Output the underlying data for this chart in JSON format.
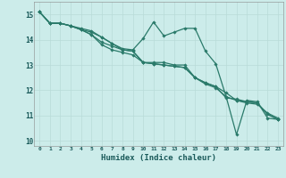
{
  "xlabel": "Humidex (Indice chaleur)",
  "xlim": [
    -0.5,
    23.5
  ],
  "ylim": [
    9.8,
    15.5
  ],
  "background_color": "#ccecea",
  "grid_color": "#b8dbd8",
  "line_color": "#2a7a6a",
  "series": [
    [
      15.1,
      14.65,
      14.65,
      14.55,
      14.4,
      14.2,
      13.9,
      13.75,
      13.6,
      13.55,
      13.1,
      13.1,
      13.1,
      13.0,
      13.0,
      12.5,
      12.3,
      12.15,
      11.9,
      11.6,
      11.5,
      11.45,
      11.1,
      10.9
    ],
    [
      15.1,
      14.65,
      14.65,
      14.55,
      14.4,
      14.3,
      14.1,
      13.85,
      13.65,
      13.6,
      14.05,
      14.7,
      14.15,
      14.3,
      14.45,
      14.45,
      13.55,
      13.05,
      11.75,
      10.25,
      11.6,
      11.55,
      10.9,
      10.85
    ],
    [
      15.1,
      14.65,
      14.65,
      14.55,
      14.4,
      14.2,
      13.8,
      13.6,
      13.5,
      13.4,
      13.1,
      13.05,
      13.0,
      12.95,
      12.9,
      12.5,
      12.25,
      12.1,
      11.75,
      11.6,
      11.55,
      11.5,
      11.05,
      10.85
    ],
    [
      15.1,
      14.65,
      14.65,
      14.55,
      14.45,
      14.35,
      14.1,
      13.85,
      13.6,
      13.55,
      13.1,
      13.05,
      13.0,
      12.95,
      12.9,
      12.5,
      12.3,
      12.15,
      11.7,
      11.65,
      11.55,
      11.5,
      11.05,
      10.85
    ]
  ],
  "xtick_labels": [
    "0",
    "1",
    "2",
    "3",
    "4",
    "5",
    "6",
    "7",
    "8",
    "9",
    "10",
    "11",
    "12",
    "13",
    "14",
    "15",
    "16",
    "17",
    "18",
    "19",
    "20",
    "21",
    "22",
    "23"
  ],
  "ytick_values": [
    10,
    11,
    12,
    13,
    14,
    15
  ],
  "marker": "D",
  "markersize": 1.8,
  "linewidth": 0.9
}
